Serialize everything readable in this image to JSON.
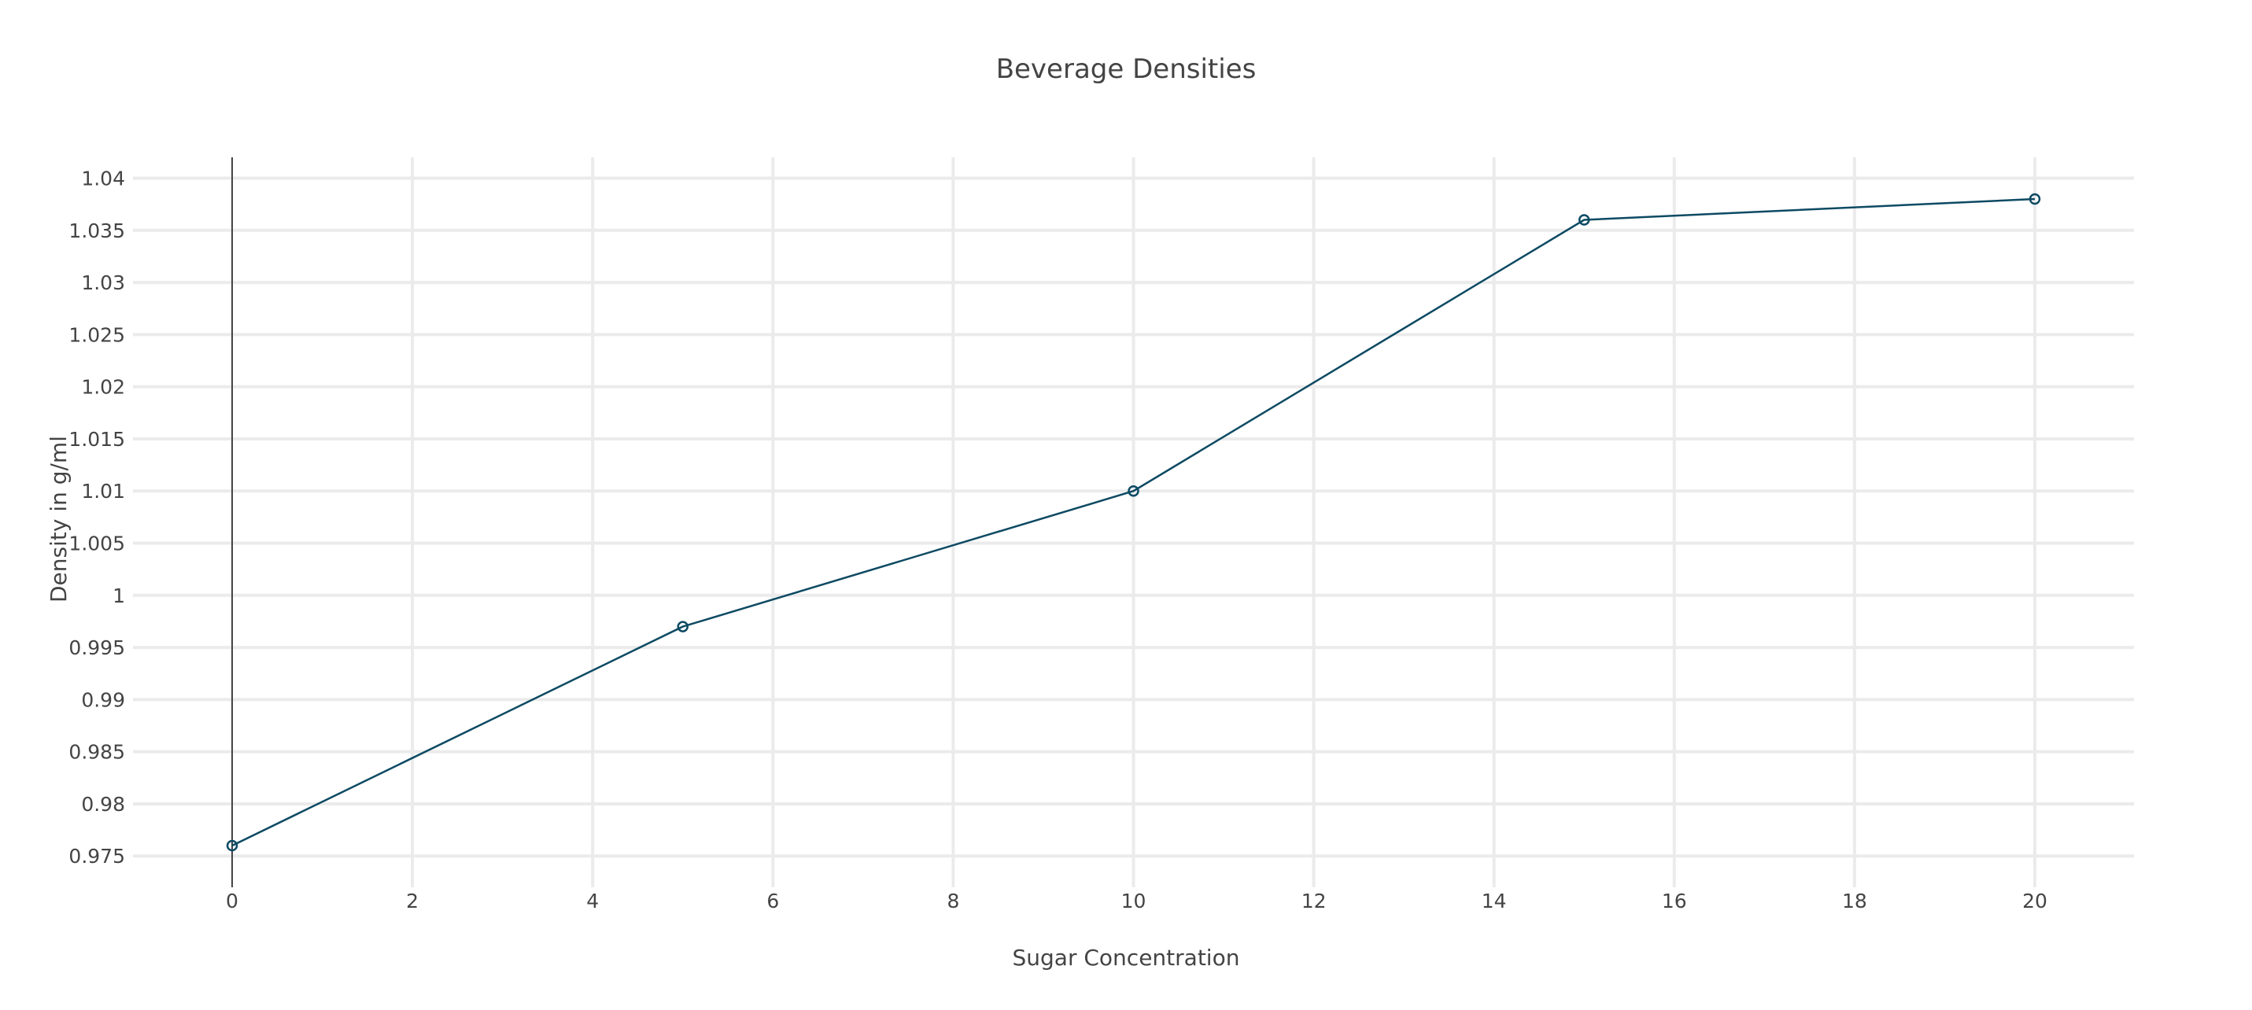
{
  "chart_data": {
    "type": "line",
    "title": "Beverage Densities",
    "xlabel": "Sugar Concentration",
    "ylabel": "Density in g/ml",
    "xlim": [
      -1.1,
      21.1
    ],
    "ylim": [
      0.972,
      1.042
    ],
    "x_ticks": [
      0,
      2,
      4,
      6,
      8,
      10,
      12,
      14,
      16,
      18,
      20
    ],
    "y_ticks": [
      0.975,
      0.98,
      0.985,
      0.99,
      0.995,
      1,
      1.005,
      1.01,
      1.015,
      1.02,
      1.025,
      1.03,
      1.035,
      1.04
    ],
    "x_tick_labels": [
      "0",
      "2",
      "4",
      "6",
      "8",
      "10",
      "12",
      "14",
      "16",
      "18",
      "20"
    ],
    "y_tick_labels": [
      "0.975",
      "0.98",
      "0.985",
      "0.99",
      "0.995",
      "1",
      "1.005",
      "1.01",
      "1.015",
      "1.02",
      "1.025",
      "1.03",
      "1.035",
      "1.04"
    ],
    "grid": true,
    "legend": false,
    "x": [
      0,
      5,
      10,
      15,
      20
    ],
    "series": [
      {
        "values": [
          0.976,
          0.997,
          1.01,
          1.036,
          1.038
        ],
        "color": "#0d4a63",
        "marker": "open-circle"
      }
    ]
  }
}
